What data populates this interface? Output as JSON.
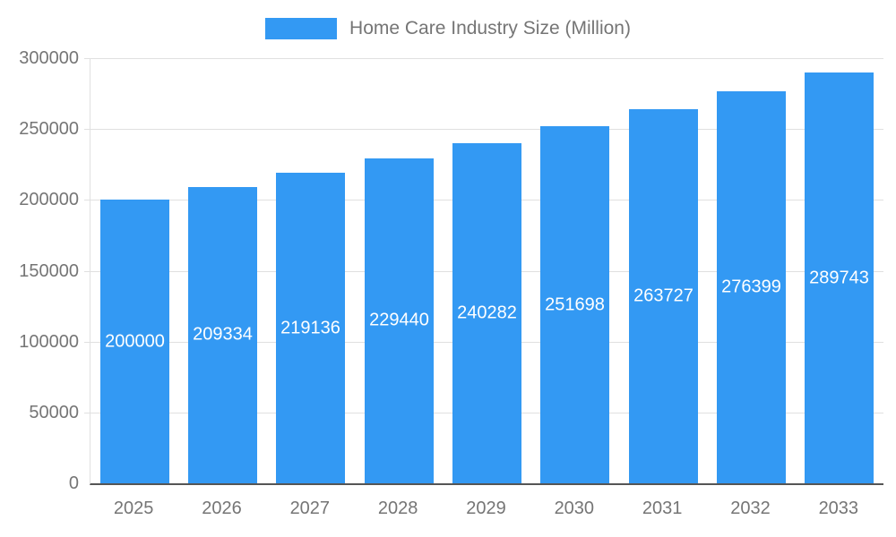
{
  "chart_data": {
    "type": "bar",
    "title": "Home Care Industry Size (Million)",
    "categories": [
      "2025",
      "2026",
      "2027",
      "2028",
      "2029",
      "2030",
      "2031",
      "2032",
      "2033"
    ],
    "values": [
      200000,
      209334,
      219136,
      229440,
      240282,
      251698,
      263727,
      276399,
      289743
    ],
    "xlabel": "",
    "ylabel": "",
    "ylim": [
      0,
      300000
    ],
    "ytick_step": 50000,
    "ytick_labels": [
      "0",
      "50000",
      "100000",
      "150000",
      "200000",
      "250000",
      "300000"
    ],
    "grid": true,
    "legend_position": "top",
    "bar_color": "#3399f3",
    "axis_text_color": "#757575",
    "gridline_color": "#e0e0e0",
    "baseline_color": "#555555",
    "data_label_color": "#ffffff"
  }
}
